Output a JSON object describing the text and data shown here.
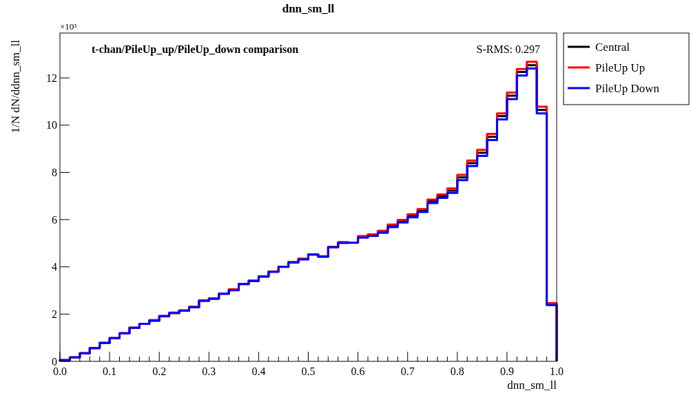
{
  "chart_data": {
    "type": "histogram",
    "title": "dnn_sm_ll",
    "xlabel": "dnn_sm_ll",
    "ylabel": "1/N dN/ddnn_sm_ll",
    "annotations": [
      "×10³",
      "t-chan/PileUp_up/PileUp_down comparison",
      "S-RMS: 0.297"
    ],
    "bins": [
      0,
      0.02,
      0.04,
      0.06,
      0.08,
      0.1,
      0.12,
      0.14,
      0.16,
      0.18,
      0.2,
      0.22,
      0.24,
      0.26,
      0.28,
      0.3,
      0.32,
      0.34,
      0.36,
      0.38,
      0.4,
      0.42,
      0.44,
      0.46,
      0.48,
      0.5,
      0.52,
      0.54,
      0.56,
      0.58,
      0.6,
      0.62,
      0.64,
      0.66,
      0.68,
      0.7,
      0.72,
      0.74,
      0.76,
      0.78,
      0.8,
      0.82,
      0.84,
      0.86,
      0.88,
      0.9,
      0.92,
      0.94,
      0.96,
      0.98,
      1
    ],
    "series": [
      {
        "name": "Central",
        "color": "#000000",
        "values": [
          0.05,
          0.17,
          0.34,
          0.56,
          0.78,
          0.98,
          1.19,
          1.42,
          1.59,
          1.73,
          1.91,
          2.05,
          2.15,
          2.3,
          2.57,
          2.65,
          2.86,
          3.02,
          3.27,
          3.4,
          3.59,
          3.8,
          4.01,
          4.2,
          4.33,
          4.53,
          4.44,
          4.84,
          5.03,
          5.03,
          5.27,
          5.35,
          5.49,
          5.74,
          5.94,
          6.17,
          6.39,
          6.78,
          7.0,
          7.23,
          7.79,
          8.39,
          8.83,
          9.51,
          10.38,
          11.25,
          12.25,
          12.54,
          10.64,
          2.41
        ]
      },
      {
        "name": "PileUp Up",
        "color": "#ff0000",
        "values": [
          0.05,
          0.17,
          0.34,
          0.56,
          0.78,
          0.98,
          1.19,
          1.42,
          1.59,
          1.75,
          1.9,
          2.04,
          2.15,
          2.31,
          2.55,
          2.65,
          2.86,
          3.05,
          3.27,
          3.42,
          3.59,
          3.8,
          4.01,
          4.21,
          4.35,
          4.53,
          4.45,
          4.85,
          5.05,
          5.03,
          5.3,
          5.38,
          5.53,
          5.79,
          5.99,
          6.23,
          6.45,
          6.85,
          7.07,
          7.32,
          7.9,
          8.5,
          8.95,
          9.63,
          10.5,
          11.38,
          12.38,
          12.68,
          10.78,
          2.46
        ]
      },
      {
        "name": "PileUp Down",
        "color": "#0000ff",
        "values": [
          0.05,
          0.17,
          0.34,
          0.56,
          0.78,
          0.98,
          1.19,
          1.42,
          1.59,
          1.72,
          1.92,
          2.06,
          2.15,
          2.29,
          2.58,
          2.66,
          2.86,
          3.01,
          3.28,
          3.41,
          3.59,
          3.79,
          4.0,
          4.18,
          4.31,
          4.52,
          4.43,
          4.83,
          5.01,
          5.02,
          5.24,
          5.31,
          5.44,
          5.68,
          5.88,
          6.1,
          6.32,
          6.7,
          6.92,
          7.13,
          7.67,
          8.27,
          8.7,
          9.37,
          10.24,
          11.1,
          12.1,
          12.4,
          10.5,
          2.38
        ]
      }
    ],
    "xlim": [
      0,
      1
    ],
    "ylim": [
      0,
      13.9
    ],
    "xticks": [
      {
        "value": 0,
        "label": "0.0"
      },
      {
        "value": 0.02,
        "label": null
      },
      {
        "value": 0.04,
        "label": null
      },
      {
        "value": 0.06,
        "label": null
      },
      {
        "value": 0.08,
        "label": null
      },
      {
        "value": 0.1,
        "label": "0.1"
      },
      {
        "value": 0.12,
        "label": null
      },
      {
        "value": 0.14,
        "label": null
      },
      {
        "value": 0.16,
        "label": null
      },
      {
        "value": 0.18,
        "label": null
      },
      {
        "value": 0.2,
        "label": "0.2"
      },
      {
        "value": 0.22,
        "label": null
      },
      {
        "value": 0.24,
        "label": null
      },
      {
        "value": 0.26,
        "label": null
      },
      {
        "value": 0.28,
        "label": null
      },
      {
        "value": 0.3,
        "label": "0.3"
      },
      {
        "value": 0.32,
        "label": null
      },
      {
        "value": 0.34,
        "label": null
      },
      {
        "value": 0.36,
        "label": null
      },
      {
        "value": 0.38,
        "label": null
      },
      {
        "value": 0.4,
        "label": "0.4"
      },
      {
        "value": 0.42,
        "label": null
      },
      {
        "value": 0.44,
        "label": null
      },
      {
        "value": 0.46,
        "label": null
      },
      {
        "value": 0.48,
        "label": null
      },
      {
        "value": 0.5,
        "label": "0.5"
      },
      {
        "value": 0.52,
        "label": null
      },
      {
        "value": 0.54,
        "label": null
      },
      {
        "value": 0.56,
        "label": null
      },
      {
        "value": 0.58,
        "label": null
      },
      {
        "value": 0.6,
        "label": "0.6"
      },
      {
        "value": 0.62,
        "label": null
      },
      {
        "value": 0.64,
        "label": null
      },
      {
        "value": 0.66,
        "label": null
      },
      {
        "value": 0.68,
        "label": null
      },
      {
        "value": 0.7,
        "label": "0.7"
      },
      {
        "value": 0.72,
        "label": null
      },
      {
        "value": 0.74,
        "label": null
      },
      {
        "value": 0.76,
        "label": null
      },
      {
        "value": 0.78,
        "label": null
      },
      {
        "value": 0.8,
        "label": "0.8"
      },
      {
        "value": 0.82,
        "label": null
      },
      {
        "value": 0.84,
        "label": null
      },
      {
        "value": 0.86,
        "label": null
      },
      {
        "value": 0.88,
        "label": null
      },
      {
        "value": 0.9,
        "label": "0.9"
      },
      {
        "value": 0.92,
        "label": null
      },
      {
        "value": 0.94,
        "label": null
      },
      {
        "value": 0.96,
        "label": null
      },
      {
        "value": 0.98,
        "label": null
      },
      {
        "value": 1,
        "label": "1.0"
      }
    ],
    "yticks": [
      0,
      2,
      4,
      6,
      8,
      10,
      12
    ],
    "legend": "top right",
    "grid": false
  }
}
